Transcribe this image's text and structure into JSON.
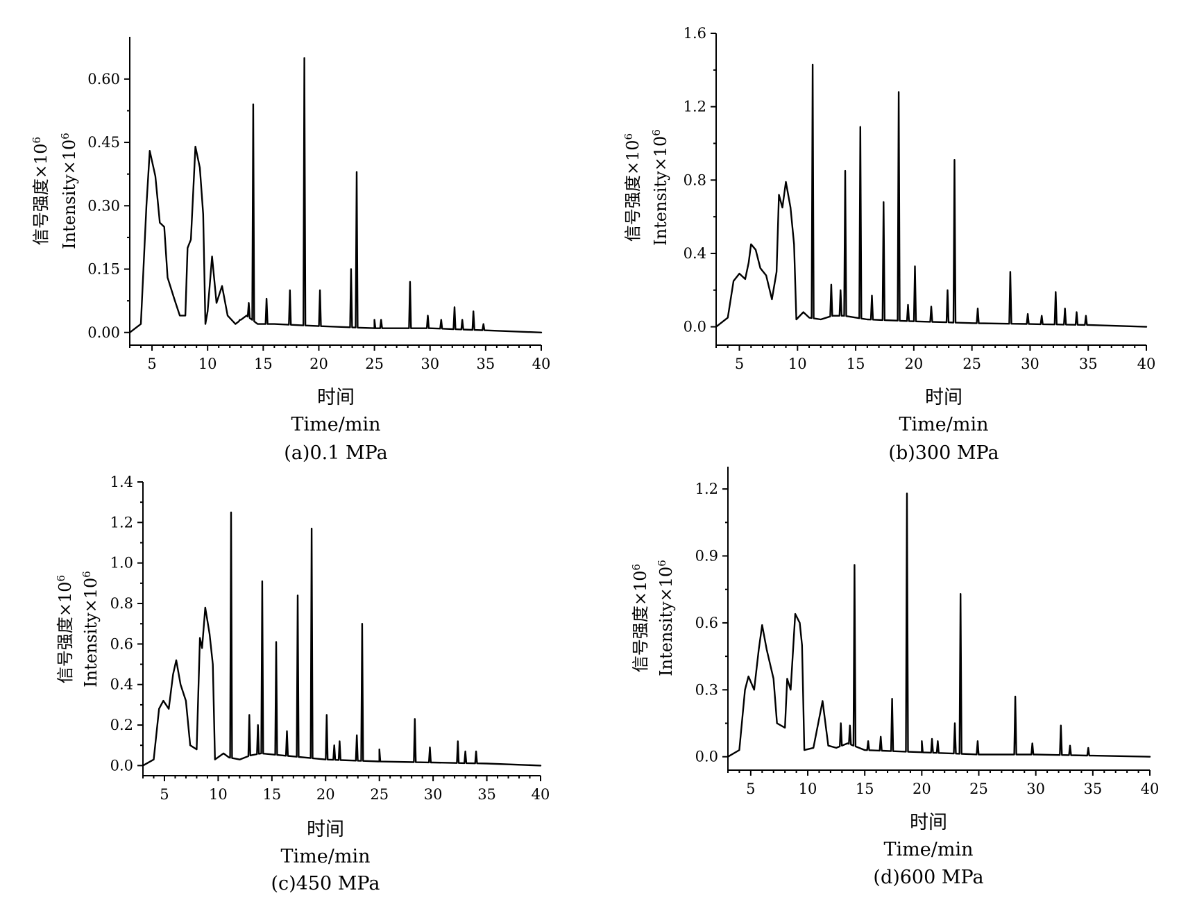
{
  "chart_data": [
    {
      "type": "line",
      "caption": "(a)0.1 MPa",
      "xlabel_cn": "时间",
      "xlabel_en": "Time/min",
      "ylabel_cn": "信号强度×10",
      "ylabel_en": "Intensity×10",
      "ylabel_exp": "6",
      "xlim": [
        3,
        40
      ],
      "ylim": [
        -0.03,
        0.7
      ],
      "xticks": [
        5,
        10,
        15,
        20,
        25,
        30,
        35,
        40
      ],
      "yticks": [
        0.0,
        0.15,
        0.3,
        0.45,
        0.6
      ],
      "ytick_labels": [
        "0.00",
        "0.15",
        "0.30",
        "0.45",
        "0.60"
      ],
      "baseline": [
        [
          3,
          0.0
        ],
        [
          4,
          0.02
        ],
        [
          4.5,
          0.3
        ],
        [
          4.8,
          0.43
        ],
        [
          5.3,
          0.37
        ],
        [
          5.7,
          0.26
        ],
        [
          6.1,
          0.25
        ],
        [
          6.4,
          0.13
        ],
        [
          7,
          0.08
        ],
        [
          7.5,
          0.04
        ],
        [
          8,
          0.04
        ],
        [
          8.2,
          0.2
        ],
        [
          8.5,
          0.22
        ],
        [
          8.9,
          0.44
        ],
        [
          9.3,
          0.39
        ],
        [
          9.6,
          0.28
        ],
        [
          9.8,
          0.02
        ],
        [
          10,
          0.05
        ],
        [
          10.4,
          0.18
        ],
        [
          10.8,
          0.07
        ],
        [
          11.3,
          0.11
        ],
        [
          11.8,
          0.04
        ],
        [
          12.5,
          0.02
        ],
        [
          13.5,
          0.04
        ],
        [
          14.5,
          0.02
        ],
        [
          16,
          0.02
        ],
        [
          20,
          0.015
        ],
        [
          25,
          0.01
        ],
        [
          30,
          0.01
        ],
        [
          35,
          0.005
        ],
        [
          40,
          0.0
        ]
      ],
      "peaks": [
        [
          12.9,
          0.03
        ],
        [
          13.7,
          0.07
        ],
        [
          14.1,
          0.54
        ],
        [
          15.3,
          0.08
        ],
        [
          17.4,
          0.1
        ],
        [
          18.7,
          0.65
        ],
        [
          20.1,
          0.1
        ],
        [
          22.9,
          0.15
        ],
        [
          23.4,
          0.38
        ],
        [
          25,
          0.03
        ],
        [
          25.6,
          0.03
        ],
        [
          28.2,
          0.12
        ],
        [
          29.8,
          0.04
        ],
        [
          31,
          0.03
        ],
        [
          32.2,
          0.06
        ],
        [
          32.9,
          0.03
        ],
        [
          33.9,
          0.05
        ],
        [
          34.8,
          0.02
        ]
      ]
    },
    {
      "type": "line",
      "caption": "(b)300 MPa",
      "xlabel_cn": "时间",
      "xlabel_en": "Time/min",
      "ylabel_cn": "信号强度×10",
      "ylabel_en": "Intensity×10",
      "ylabel_exp": "6",
      "xlim": [
        3,
        40
      ],
      "ylim": [
        -0.1,
        1.6
      ],
      "xticks": [
        5,
        10,
        15,
        20,
        25,
        30,
        35,
        40
      ],
      "yticks": [
        0.0,
        0.4,
        0.8,
        1.2,
        1.6
      ],
      "ytick_labels": [
        "0.0",
        "0.4",
        "0.8",
        "1.2",
        "1.6"
      ],
      "baseline": [
        [
          3,
          0.0
        ],
        [
          4,
          0.05
        ],
        [
          4.5,
          0.25
        ],
        [
          5,
          0.29
        ],
        [
          5.5,
          0.26
        ],
        [
          5.8,
          0.35
        ],
        [
          6,
          0.45
        ],
        [
          6.4,
          0.42
        ],
        [
          6.8,
          0.32
        ],
        [
          7.3,
          0.28
        ],
        [
          7.8,
          0.15
        ],
        [
          8.2,
          0.3
        ],
        [
          8.4,
          0.72
        ],
        [
          8.7,
          0.65
        ],
        [
          9,
          0.79
        ],
        [
          9.4,
          0.65
        ],
        [
          9.7,
          0.45
        ],
        [
          9.9,
          0.04
        ],
        [
          10.5,
          0.08
        ],
        [
          11,
          0.05
        ],
        [
          12,
          0.04
        ],
        [
          13,
          0.06
        ],
        [
          14,
          0.06
        ],
        [
          16,
          0.04
        ],
        [
          20,
          0.03
        ],
        [
          25,
          0.02
        ],
        [
          30,
          0.015
        ],
        [
          35,
          0.01
        ],
        [
          40,
          0.0
        ]
      ],
      "peaks": [
        [
          11.3,
          1.43
        ],
        [
          12.9,
          0.23
        ],
        [
          13.7,
          0.2
        ],
        [
          14.1,
          0.85
        ],
        [
          15.4,
          1.09
        ],
        [
          16.4,
          0.17
        ],
        [
          17.4,
          0.68
        ],
        [
          18.7,
          1.28
        ],
        [
          19.5,
          0.12
        ],
        [
          20.1,
          0.33
        ],
        [
          21.5,
          0.11
        ],
        [
          22.9,
          0.2
        ],
        [
          23.5,
          0.91
        ],
        [
          25.5,
          0.1
        ],
        [
          28.3,
          0.3
        ],
        [
          29.8,
          0.07
        ],
        [
          31,
          0.06
        ],
        [
          32.2,
          0.19
        ],
        [
          33,
          0.1
        ],
        [
          34,
          0.08
        ],
        [
          34.8,
          0.06
        ]
      ]
    },
    {
      "type": "line",
      "caption": "(c)450 MPa",
      "xlabel_cn": "时间",
      "xlabel_en": "Time/min",
      "ylabel_cn": "信号强度×10",
      "ylabel_en": "Intensity×10",
      "ylabel_exp": "6",
      "xlim": [
        3,
        40
      ],
      "ylim": [
        -0.05,
        1.4
      ],
      "xticks": [
        5,
        10,
        15,
        20,
        25,
        30,
        35,
        40
      ],
      "yticks": [
        0.0,
        0.2,
        0.4,
        0.6,
        0.8,
        1.0,
        1.2,
        1.4
      ],
      "ytick_labels": [
        "0.0",
        "0.2",
        "0.4",
        "0.6",
        "0.8",
        "1.0",
        "1.2",
        "1.4"
      ],
      "baseline": [
        [
          3,
          0.0
        ],
        [
          4,
          0.03
        ],
        [
          4.5,
          0.28
        ],
        [
          4.9,
          0.32
        ],
        [
          5.4,
          0.28
        ],
        [
          5.8,
          0.45
        ],
        [
          6.1,
          0.52
        ],
        [
          6.5,
          0.4
        ],
        [
          7,
          0.32
        ],
        [
          7.4,
          0.1
        ],
        [
          8,
          0.08
        ],
        [
          8.3,
          0.63
        ],
        [
          8.5,
          0.58
        ],
        [
          8.8,
          0.78
        ],
        [
          9.2,
          0.65
        ],
        [
          9.5,
          0.5
        ],
        [
          9.7,
          0.03
        ],
        [
          10.5,
          0.06
        ],
        [
          11,
          0.04
        ],
        [
          12,
          0.03
        ],
        [
          13,
          0.05
        ],
        [
          14,
          0.06
        ],
        [
          16,
          0.05
        ],
        [
          20,
          0.03
        ],
        [
          25,
          0.02
        ],
        [
          30,
          0.015
        ],
        [
          35,
          0.01
        ],
        [
          40,
          0.0
        ]
      ],
      "peaks": [
        [
          11.2,
          1.25
        ],
        [
          12.9,
          0.25
        ],
        [
          13.7,
          0.2
        ],
        [
          14.1,
          0.91
        ],
        [
          15.4,
          0.61
        ],
        [
          16.4,
          0.17
        ],
        [
          17.4,
          0.84
        ],
        [
          18.7,
          1.17
        ],
        [
          20.1,
          0.25
        ],
        [
          20.8,
          0.1
        ],
        [
          21.3,
          0.12
        ],
        [
          22.9,
          0.15
        ],
        [
          23.4,
          0.7
        ],
        [
          25,
          0.08
        ],
        [
          28.3,
          0.23
        ],
        [
          29.7,
          0.09
        ],
        [
          32.3,
          0.12
        ],
        [
          33,
          0.07
        ],
        [
          34,
          0.07
        ]
      ]
    },
    {
      "type": "line",
      "caption": "(d)600 MPa",
      "xlabel_cn": "时间",
      "xlabel_en": "Time/min",
      "ylabel_cn": "信号强度×10",
      "ylabel_en": "Intensity×10",
      "ylabel_exp": "6",
      "xlim": [
        3,
        40
      ],
      "ylim": [
        -0.06,
        1.3
      ],
      "xticks": [
        5,
        10,
        15,
        20,
        25,
        30,
        35,
        40
      ],
      "yticks": [
        0.0,
        0.3,
        0.6,
        0.9,
        1.2
      ],
      "ytick_labels": [
        "0.0",
        "0.3",
        "0.6",
        "0.9",
        "1.2"
      ],
      "baseline": [
        [
          3,
          0.0
        ],
        [
          4,
          0.03
        ],
        [
          4.5,
          0.3
        ],
        [
          4.8,
          0.36
        ],
        [
          5.3,
          0.3
        ],
        [
          5.7,
          0.48
        ],
        [
          6,
          0.59
        ],
        [
          6.4,
          0.48
        ],
        [
          7,
          0.35
        ],
        [
          7.3,
          0.15
        ],
        [
          8,
          0.13
        ],
        [
          8.2,
          0.35
        ],
        [
          8.5,
          0.3
        ],
        [
          8.9,
          0.64
        ],
        [
          9.3,
          0.6
        ],
        [
          9.5,
          0.5
        ],
        [
          9.7,
          0.03
        ],
        [
          10.5,
          0.04
        ],
        [
          11.3,
          0.25
        ],
        [
          11.8,
          0.05
        ],
        [
          12.5,
          0.04
        ],
        [
          13.5,
          0.06
        ],
        [
          15,
          0.03
        ],
        [
          20,
          0.02
        ],
        [
          25,
          0.01
        ],
        [
          30,
          0.01
        ],
        [
          35,
          0.005
        ],
        [
          40,
          0.0
        ]
      ],
      "peaks": [
        [
          12.9,
          0.15
        ],
        [
          13.7,
          0.14
        ],
        [
          14.1,
          0.86
        ],
        [
          15.3,
          0.07
        ],
        [
          16.4,
          0.09
        ],
        [
          17.4,
          0.26
        ],
        [
          18.7,
          1.18
        ],
        [
          20,
          0.07
        ],
        [
          20.9,
          0.08
        ],
        [
          21.4,
          0.07
        ],
        [
          22.9,
          0.15
        ],
        [
          23.4,
          0.73
        ],
        [
          24.9,
          0.07
        ],
        [
          28.2,
          0.27
        ],
        [
          29.7,
          0.06
        ],
        [
          32.2,
          0.14
        ],
        [
          33,
          0.05
        ],
        [
          34.6,
          0.04
        ]
      ]
    }
  ]
}
